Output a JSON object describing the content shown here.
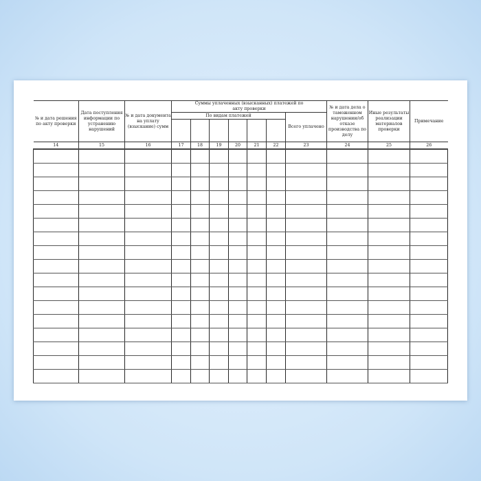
{
  "table": {
    "headers": {
      "col14": "№ и дата решения по акту проверки",
      "col15": "Дата поступления информации по устранению нарушений",
      "col16": "№ и дата документа на уплату (взыскание) сумм",
      "group_title": "Суммы уплаченных (взысканных) платежей по акту проверки",
      "group_sub": "По видам платежей",
      "col23": "Всего уплачено",
      "col24": "№ и дата дела о таможенном нарушении/об отказе производства по делу",
      "col25": "Иные результаты реализации материалов проверки",
      "col26": "Примечание"
    },
    "column_numbers": [
      "14",
      "15",
      "16",
      "17",
      "18",
      "19",
      "20",
      "21",
      "22",
      "23",
      "24",
      "25",
      "26"
    ],
    "empty_rows": 17
  }
}
